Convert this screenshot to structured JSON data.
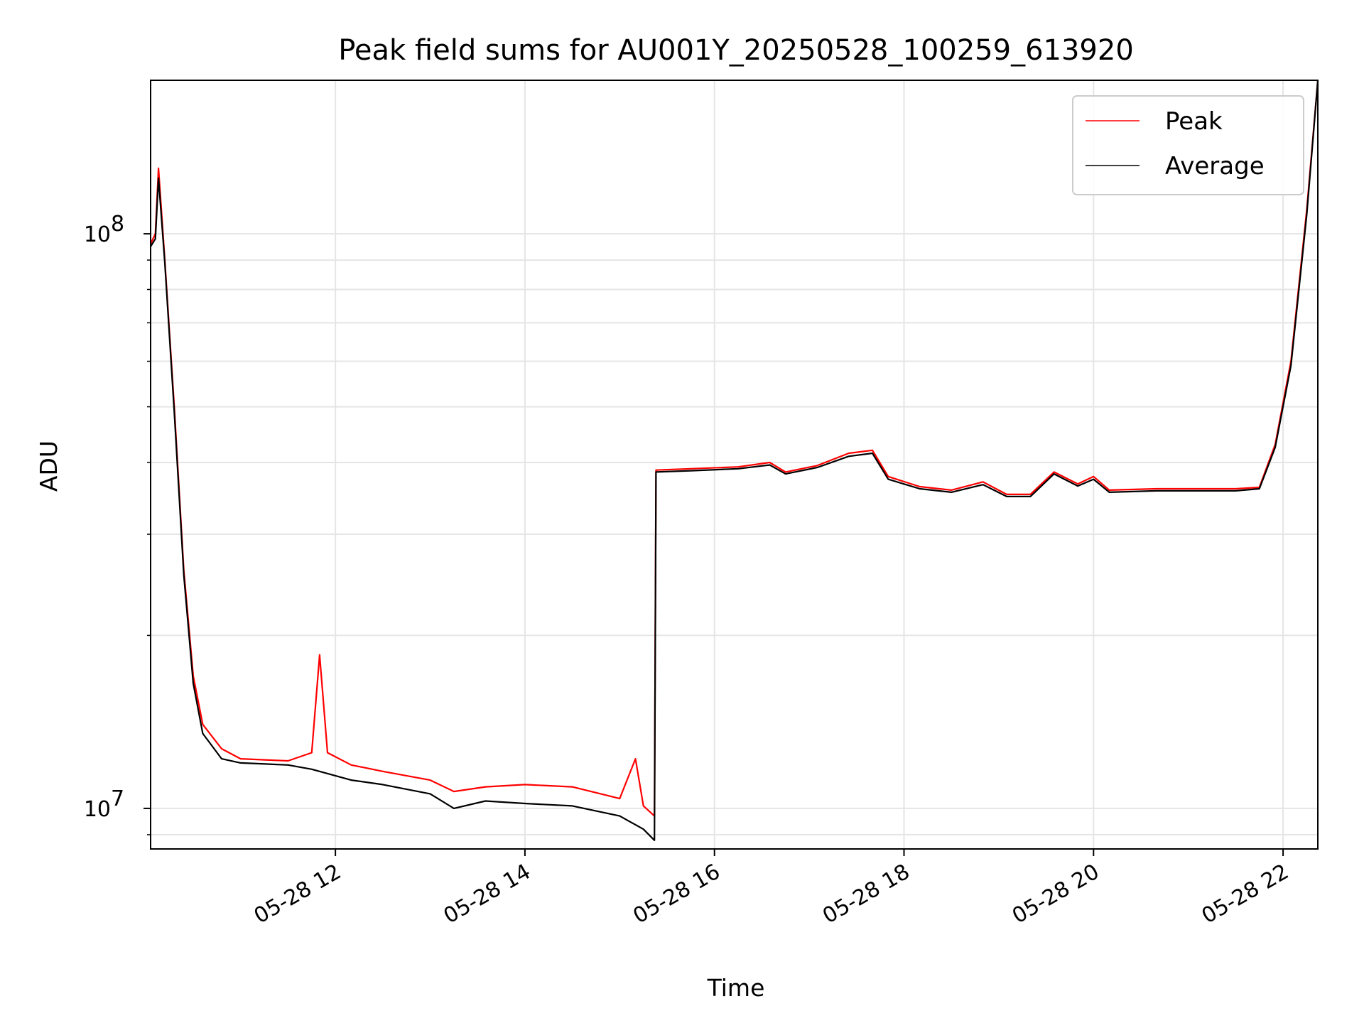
{
  "chart_data": {
    "type": "line",
    "title": "Peak field sums for AU001Y_20250528_100259_613920",
    "xlabel": "Time",
    "ylabel": "ADU",
    "y_scale": "log",
    "ylim": [
      8500000.0,
      185000000.0
    ],
    "xlim": [
      "2025-05-28 10:03",
      "2025-05-28 22:22"
    ],
    "x_tick_labels": [
      "05-28 12",
      "05-28 14",
      "05-28 16",
      "05-28 18",
      "05-28 20",
      "05-28 22"
    ],
    "x_ticks": [
      "2025-05-28 12:00",
      "2025-05-28 14:00",
      "2025-05-28 16:00",
      "2025-05-28 18:00",
      "2025-05-28 20:00",
      "2025-05-28 22:00"
    ],
    "y_tick_labels": [
      {
        "base": "10",
        "exp": "7",
        "value": 10000000.0
      },
      {
        "base": "10",
        "exp": "8",
        "value": 100000000.0
      }
    ],
    "grid": true,
    "legend_position": "top-right",
    "series": [
      {
        "name": "Peak",
        "color": "#ff0000",
        "points": [
          [
            "2025-05-28 10:03",
            96000000.0
          ],
          [
            "2025-05-28 10:06",
            100000000.0
          ],
          [
            "2025-05-28 10:08",
            130000000.0
          ],
          [
            "2025-05-28 10:12",
            90000000.0
          ],
          [
            "2025-05-28 10:18",
            50000000.0
          ],
          [
            "2025-05-28 10:24",
            26000000.0
          ],
          [
            "2025-05-28 10:30",
            17000000.0
          ],
          [
            "2025-05-28 10:36",
            14000000.0
          ],
          [
            "2025-05-28 10:48",
            12700000.0
          ],
          [
            "2025-05-28 11:00",
            12200000.0
          ],
          [
            "2025-05-28 11:30",
            12100000.0
          ],
          [
            "2025-05-28 11:45",
            12500000.0
          ],
          [
            "2025-05-28 11:50",
            18500000.0
          ],
          [
            "2025-05-28 11:55",
            12500000.0
          ],
          [
            "2025-05-28 12:10",
            11900000.0
          ],
          [
            "2025-05-28 12:30",
            11600000.0
          ],
          [
            "2025-05-28 13:00",
            11200000.0
          ],
          [
            "2025-05-28 13:15",
            10700000.0
          ],
          [
            "2025-05-28 13:35",
            10900000.0
          ],
          [
            "2025-05-28 14:00",
            11000000.0
          ],
          [
            "2025-05-28 14:30",
            10900000.0
          ],
          [
            "2025-05-28 15:00",
            10400000.0
          ],
          [
            "2025-05-28 15:10",
            12200000.0
          ],
          [
            "2025-05-28 15:15",
            10100000.0
          ],
          [
            "2025-05-28 15:22",
            9700000.0
          ],
          [
            "2025-05-28 15:23",
            38800000.0
          ],
          [
            "2025-05-28 15:45",
            39000000.0
          ],
          [
            "2025-05-28 16:15",
            39300000.0
          ],
          [
            "2025-05-28 16:35",
            40000000.0
          ],
          [
            "2025-05-28 16:45",
            38500000.0
          ],
          [
            "2025-05-28 17:05",
            39500000.0
          ],
          [
            "2025-05-28 17:25",
            41500000.0
          ],
          [
            "2025-05-28 17:40",
            42000000.0
          ],
          [
            "2025-05-28 17:50",
            37800000.0
          ],
          [
            "2025-05-28 18:10",
            36300000.0
          ],
          [
            "2025-05-28 18:30",
            35800000.0
          ],
          [
            "2025-05-28 18:50",
            37000000.0
          ],
          [
            "2025-05-28 19:05",
            35200000.0
          ],
          [
            "2025-05-28 19:20",
            35200000.0
          ],
          [
            "2025-05-28 19:35",
            38500000.0
          ],
          [
            "2025-05-28 19:50",
            36700000.0
          ],
          [
            "2025-05-28 20:00",
            37800000.0
          ],
          [
            "2025-05-28 20:10",
            35800000.0
          ],
          [
            "2025-05-28 20:40",
            36000000.0
          ],
          [
            "2025-05-28 21:00",
            36000000.0
          ],
          [
            "2025-05-28 21:30",
            36000000.0
          ],
          [
            "2025-05-28 21:45",
            36200000.0
          ],
          [
            "2025-05-28 21:55",
            43000000.0
          ],
          [
            "2025-05-28 22:05",
            60000000.0
          ],
          [
            "2025-05-28 22:15",
            110000000.0
          ],
          [
            "2025-05-28 22:22",
            185000000.0
          ]
        ]
      },
      {
        "name": "Average",
        "color": "#000000",
        "points": [
          [
            "2025-05-28 10:03",
            95000000.0
          ],
          [
            "2025-05-28 10:06",
            98000000.0
          ],
          [
            "2025-05-28 10:08",
            125000000.0
          ],
          [
            "2025-05-28 10:12",
            89000000.0
          ],
          [
            "2025-05-28 10:18",
            49000000.0
          ],
          [
            "2025-05-28 10:24",
            25500000.0
          ],
          [
            "2025-05-28 10:30",
            16500000.0
          ],
          [
            "2025-05-28 10:36",
            13500000.0
          ],
          [
            "2025-05-28 10:48",
            12200000.0
          ],
          [
            "2025-05-28 11:00",
            12000000.0
          ],
          [
            "2025-05-28 11:30",
            11900000.0
          ],
          [
            "2025-05-28 11:45",
            11700000.0
          ],
          [
            "2025-05-28 12:10",
            11200000.0
          ],
          [
            "2025-05-28 12:30",
            11000000.0
          ],
          [
            "2025-05-28 13:00",
            10600000.0
          ],
          [
            "2025-05-28 13:15",
            10000000.0
          ],
          [
            "2025-05-28 13:35",
            10300000.0
          ],
          [
            "2025-05-28 14:00",
            10200000.0
          ],
          [
            "2025-05-28 14:30",
            10100000.0
          ],
          [
            "2025-05-28 15:00",
            9700000.0
          ],
          [
            "2025-05-28 15:15",
            9200000.0
          ],
          [
            "2025-05-28 15:22",
            8800000.0
          ],
          [
            "2025-05-28 15:23",
            38500000.0
          ],
          [
            "2025-05-28 15:45",
            38700000.0
          ],
          [
            "2025-05-28 16:15",
            39000000.0
          ],
          [
            "2025-05-28 16:35",
            39600000.0
          ],
          [
            "2025-05-28 16:45",
            38200000.0
          ],
          [
            "2025-05-28 17:05",
            39200000.0
          ],
          [
            "2025-05-28 17:25",
            41000000.0
          ],
          [
            "2025-05-28 17:40",
            41500000.0
          ],
          [
            "2025-05-28 17:50",
            37400000.0
          ],
          [
            "2025-05-28 18:10",
            36000000.0
          ],
          [
            "2025-05-28 18:30",
            35500000.0
          ],
          [
            "2025-05-28 18:50",
            36600000.0
          ],
          [
            "2025-05-28 19:05",
            34900000.0
          ],
          [
            "2025-05-28 19:20",
            34900000.0
          ],
          [
            "2025-05-28 19:35",
            38200000.0
          ],
          [
            "2025-05-28 19:50",
            36400000.0
          ],
          [
            "2025-05-28 20:00",
            37400000.0
          ],
          [
            "2025-05-28 20:10",
            35500000.0
          ],
          [
            "2025-05-28 20:40",
            35700000.0
          ],
          [
            "2025-05-28 21:00",
            35700000.0
          ],
          [
            "2025-05-28 21:30",
            35700000.0
          ],
          [
            "2025-05-28 21:45",
            36000000.0
          ],
          [
            "2025-05-28 21:55",
            42500000.0
          ],
          [
            "2025-05-28 22:05",
            59000000.0
          ],
          [
            "2025-05-28 22:15",
            108000000.0
          ],
          [
            "2025-05-28 22:22",
            185000000.0
          ]
        ]
      }
    ]
  }
}
